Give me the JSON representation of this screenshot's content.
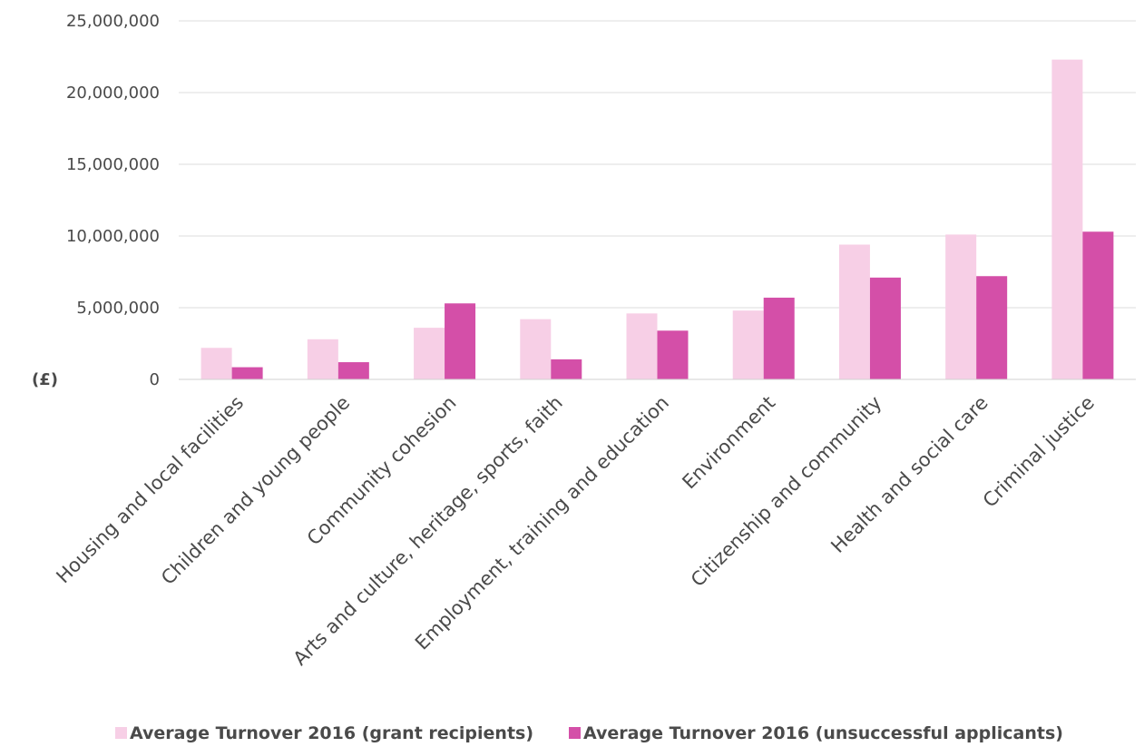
{
  "chart_data": {
    "type": "bar",
    "unit_label": "(£)",
    "categories": [
      "Housing and local facilities",
      "Children and young people",
      "Community cohesion",
      "Arts and culture, heritage, sports, faith",
      "Employment, training and education",
      "Environment",
      "Citizenship and community",
      "Health and social care",
      "Criminal justice"
    ],
    "series": [
      {
        "name": "Average Turnover 2016 (grant recipients)",
        "color": "#f7cfe6",
        "values": [
          2200000,
          2800000,
          3600000,
          4200000,
          4600000,
          4800000,
          9400000,
          10100000,
          22300000
        ]
      },
      {
        "name": "Average Turnover  2016 (unsuccessful applicants)",
        "color": "#d44fa8",
        "values": [
          850000,
          1200000,
          5300000,
          1400000,
          3400000,
          5700000,
          7100000,
          7200000,
          10300000
        ]
      }
    ],
    "y_ticks": [
      "0",
      "5,000,000",
      "10,000,000",
      "15,000,000",
      "20,000,000",
      "25,000,000"
    ],
    "ylim": [
      0,
      25000000
    ],
    "grid": true,
    "legend_position": "bottom"
  }
}
